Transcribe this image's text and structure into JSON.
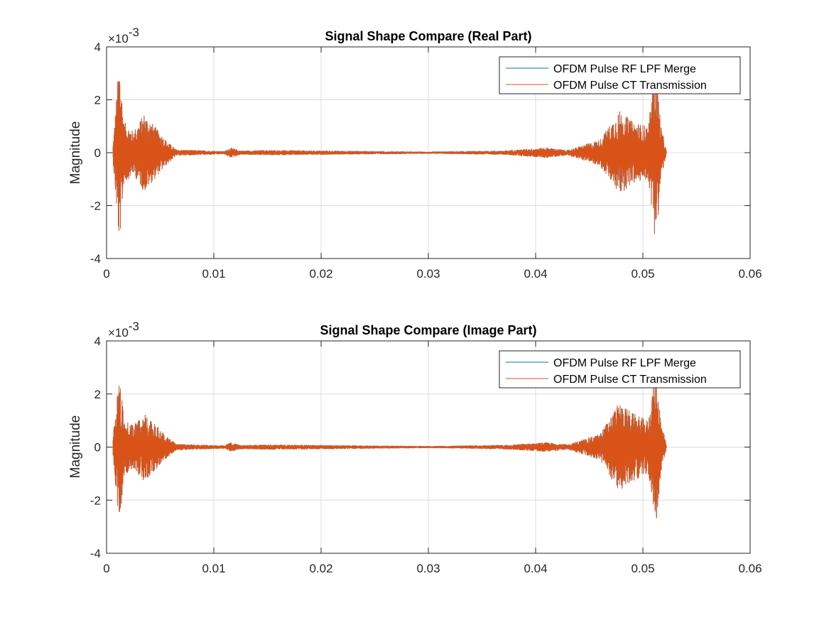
{
  "figure": {
    "background": "#ffffff"
  },
  "chart_data": [
    {
      "type": "line",
      "title": "Signal Shape Compare (Real Part)",
      "xlabel": "",
      "ylabel": "Magnitude",
      "xlim": [
        0,
        0.06
      ],
      "ylim": [
        -4,
        4
      ],
      "y_exponent_label": "×10",
      "y_exponent": "-3",
      "xticks": [
        0,
        0.01,
        0.02,
        0.03,
        0.04,
        0.05,
        0.06
      ],
      "xtick_labels": [
        "0",
        "0.01",
        "0.02",
        "0.03",
        "0.04",
        "0.05",
        "0.06"
      ],
      "yticks": [
        -4,
        -2,
        0,
        2,
        4
      ],
      "ytick_labels": [
        "-4",
        "-2",
        "0",
        "2",
        "4"
      ],
      "grid": true,
      "legend_position": "top-right",
      "signal_extent": [
        0.0006,
        0.0522
      ],
      "series": [
        {
          "name": "OFDM Pulse RF LPF Merge",
          "color": "#0072BD"
        },
        {
          "name": "OFDM Pulse CT Transmission",
          "color": "#D95319"
        }
      ],
      "envelope": [
        {
          "t": 0.0006,
          "a": 0.3
        },
        {
          "t": 0.0008,
          "a": 1.4
        },
        {
          "t": 0.0012,
          "a": 3.6
        },
        {
          "t": 0.0016,
          "a": 1.2
        },
        {
          "t": 0.0025,
          "a": 0.8
        },
        {
          "t": 0.0035,
          "a": 1.5
        },
        {
          "t": 0.0045,
          "a": 1.0
        },
        {
          "t": 0.0055,
          "a": 0.5
        },
        {
          "t": 0.0065,
          "a": 0.12
        },
        {
          "t": 0.011,
          "a": 0.06
        },
        {
          "t": 0.0115,
          "a": 0.2
        },
        {
          "t": 0.0125,
          "a": 0.08
        },
        {
          "t": 0.0155,
          "a": 0.1
        },
        {
          "t": 0.02,
          "a": 0.08
        },
        {
          "t": 0.03,
          "a": 0.04
        },
        {
          "t": 0.037,
          "a": 0.08
        },
        {
          "t": 0.041,
          "a": 0.2
        },
        {
          "t": 0.043,
          "a": 0.1
        },
        {
          "t": 0.046,
          "a": 0.5
        },
        {
          "t": 0.0478,
          "a": 1.6
        },
        {
          "t": 0.049,
          "a": 1.2
        },
        {
          "t": 0.0505,
          "a": 1.0
        },
        {
          "t": 0.0512,
          "a": 3.5
        },
        {
          "t": 0.0517,
          "a": 1.0
        },
        {
          "t": 0.0522,
          "a": 0.05
        }
      ]
    },
    {
      "type": "line",
      "title": "Signal Shape Compare (Image Part)",
      "xlabel": "",
      "ylabel": "Magnitude",
      "xlim": [
        0,
        0.06
      ],
      "ylim": [
        -4,
        4
      ],
      "y_exponent_label": "×10",
      "y_exponent": "-3",
      "xticks": [
        0,
        0.01,
        0.02,
        0.03,
        0.04,
        0.05,
        0.06
      ],
      "xtick_labels": [
        "0",
        "0.01",
        "0.02",
        "0.03",
        "0.04",
        "0.05",
        "0.06"
      ],
      "yticks": [
        -4,
        -2,
        0,
        2,
        4
      ],
      "ytick_labels": [
        "-4",
        "-2",
        "0",
        "2",
        "4"
      ],
      "grid": true,
      "legend_position": "top-right",
      "signal_extent": [
        0.0006,
        0.0522
      ],
      "series": [
        {
          "name": "OFDM Pulse RF LPF Merge",
          "color": "#0072BD"
        },
        {
          "name": "OFDM Pulse CT Transmission",
          "color": "#D95319"
        }
      ],
      "envelope": [
        {
          "t": 0.0006,
          "a": 0.3
        },
        {
          "t": 0.0008,
          "a": 1.3
        },
        {
          "t": 0.0012,
          "a": 3.0
        },
        {
          "t": 0.0016,
          "a": 1.1
        },
        {
          "t": 0.0025,
          "a": 0.8
        },
        {
          "t": 0.0035,
          "a": 1.3
        },
        {
          "t": 0.0045,
          "a": 0.9
        },
        {
          "t": 0.0055,
          "a": 0.45
        },
        {
          "t": 0.0065,
          "a": 0.12
        },
        {
          "t": 0.011,
          "a": 0.06
        },
        {
          "t": 0.0115,
          "a": 0.18
        },
        {
          "t": 0.0125,
          "a": 0.08
        },
        {
          "t": 0.0155,
          "a": 0.1
        },
        {
          "t": 0.02,
          "a": 0.08
        },
        {
          "t": 0.03,
          "a": 0.04
        },
        {
          "t": 0.037,
          "a": 0.08
        },
        {
          "t": 0.041,
          "a": 0.18
        },
        {
          "t": 0.043,
          "a": 0.1
        },
        {
          "t": 0.046,
          "a": 0.5
        },
        {
          "t": 0.0478,
          "a": 1.7
        },
        {
          "t": 0.049,
          "a": 1.3
        },
        {
          "t": 0.0505,
          "a": 1.0
        },
        {
          "t": 0.0512,
          "a": 3.0
        },
        {
          "t": 0.0517,
          "a": 1.0
        },
        {
          "t": 0.0522,
          "a": 0.05
        }
      ]
    }
  ]
}
